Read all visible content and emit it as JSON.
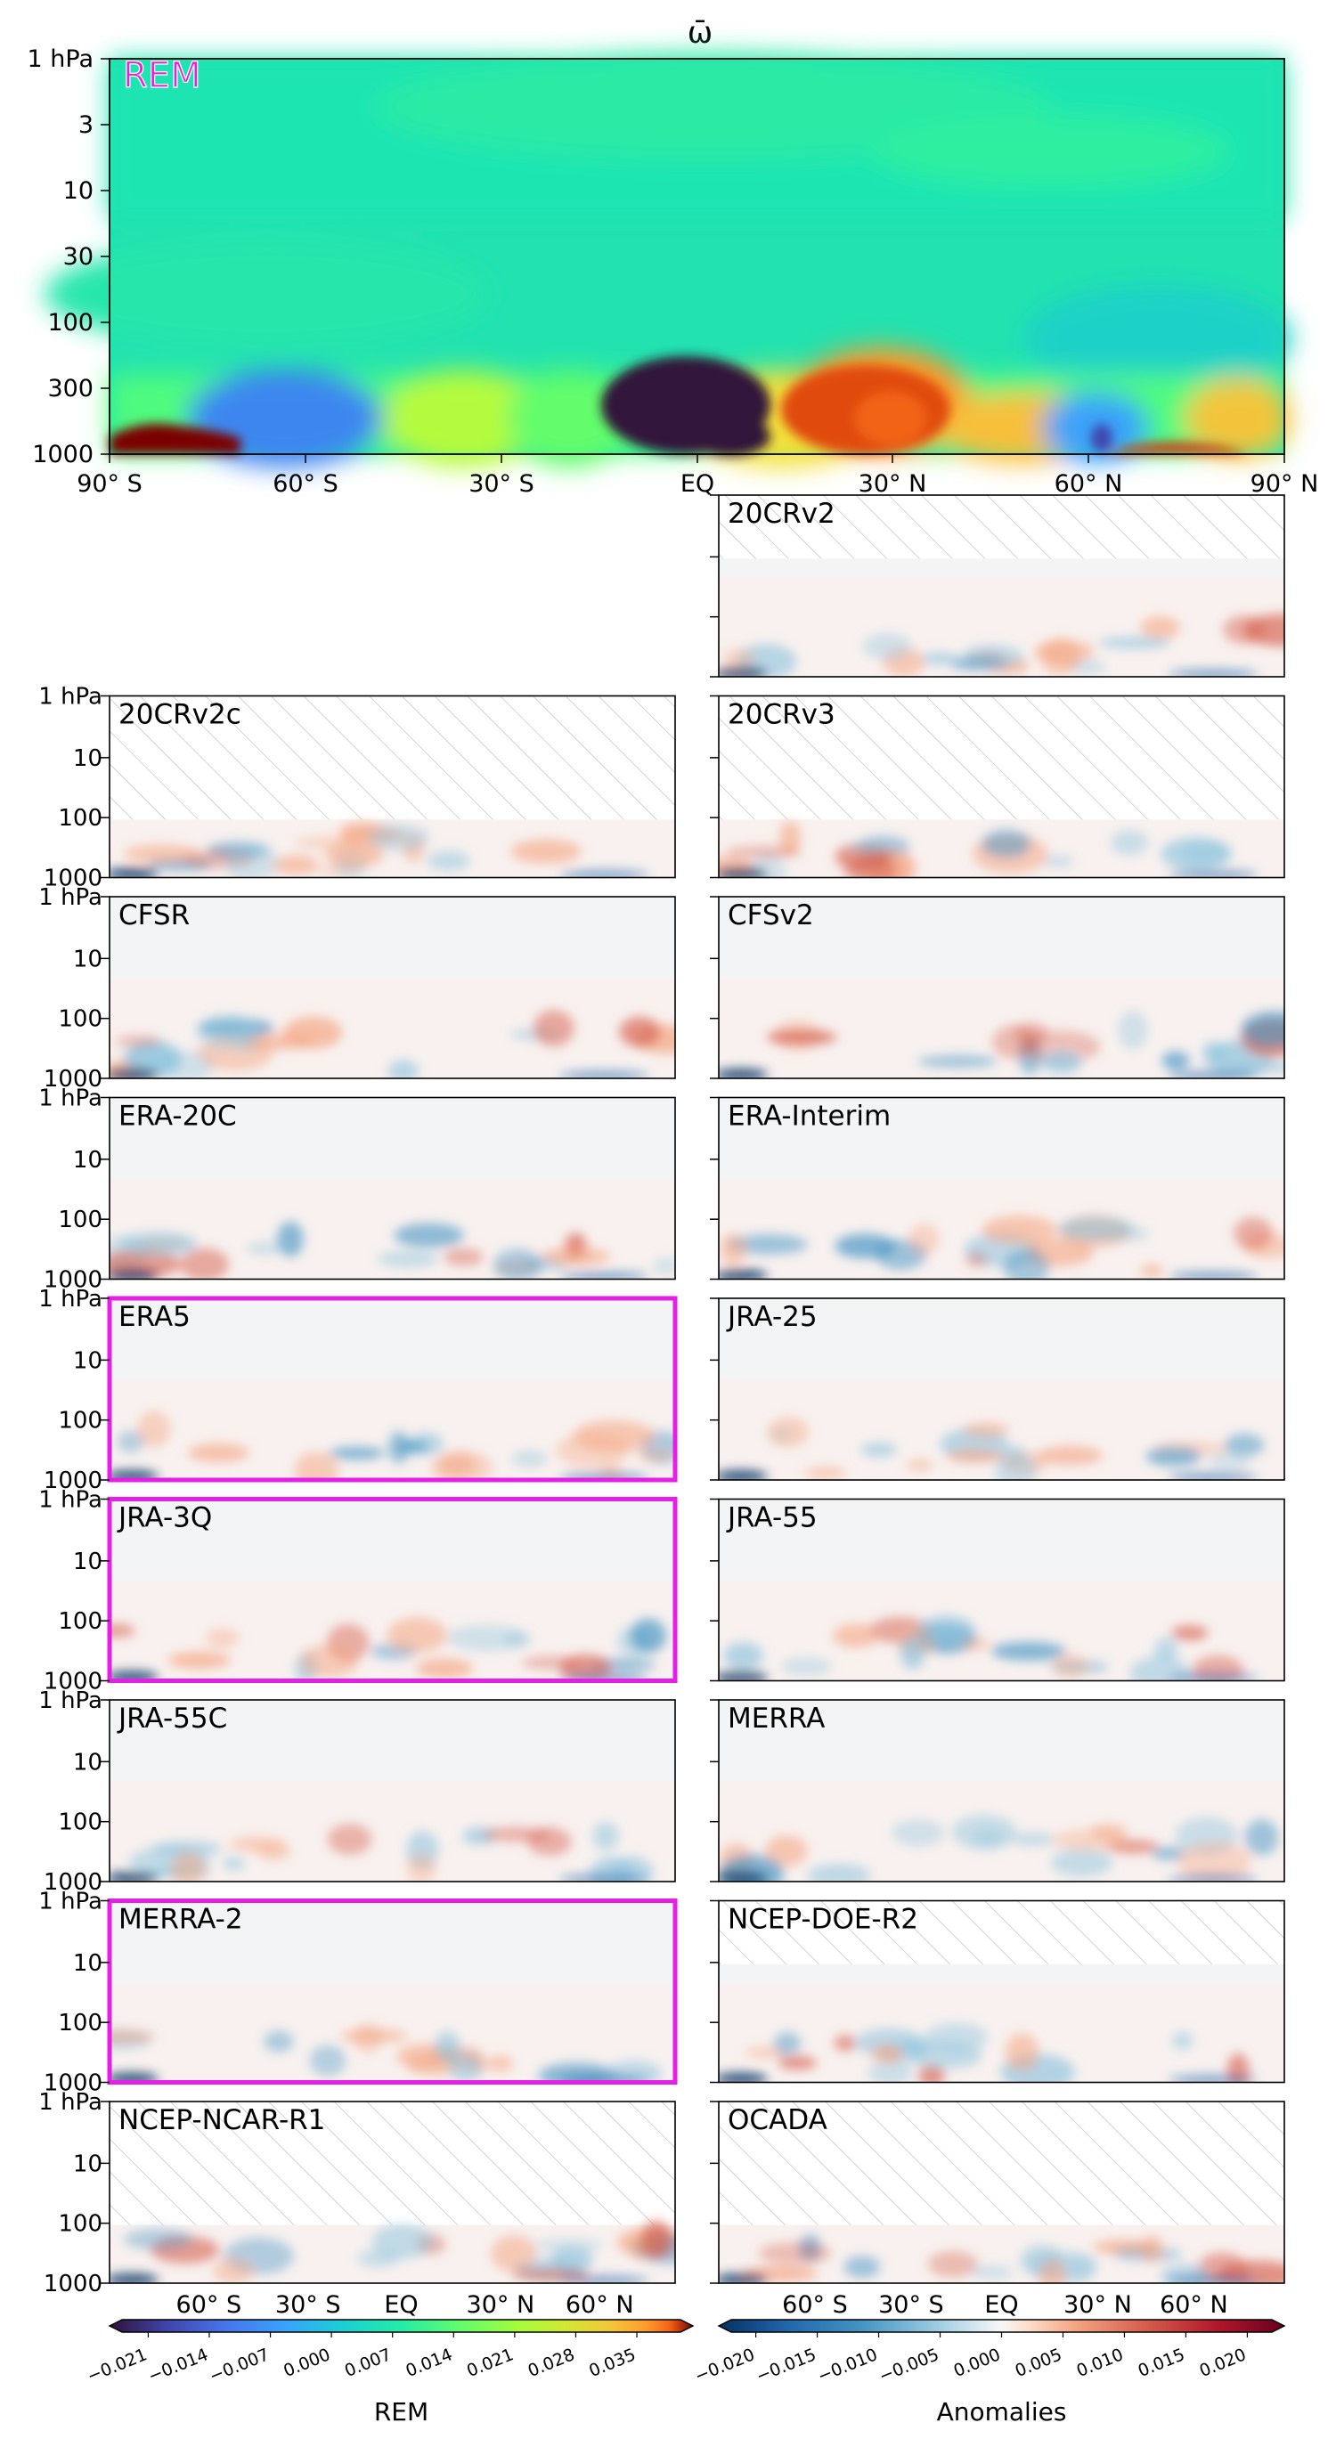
{
  "title": "ω̄",
  "colors": {
    "highlight": "#e51fe5",
    "hatch": "#c8c8c8",
    "background_anomaly": "#f1f3f4"
  },
  "chart_data": {
    "type": "heatmap",
    "x_ticks_top": [
      "90° S",
      "60° S",
      "30° S",
      "EQ",
      "30° N",
      "60° N",
      "90° N"
    ],
    "x_ticks_bottom": [
      "60° S",
      "30° S",
      "EQ",
      "30° N",
      "60° N"
    ],
    "y_ticks_top": [
      "1 hPa",
      "3",
      "10",
      "30",
      "100",
      "300",
      "1000"
    ],
    "y_ticks_panel": [
      "1 hPa",
      "10",
      "100",
      "1000"
    ],
    "rem_panel": {
      "label": "REM",
      "colormap": "turbo",
      "ylim_hPa": [
        1000,
        1
      ],
      "xlim_deg": [
        -90,
        90
      ]
    },
    "anomaly_panels": [
      {
        "name": "20CRv2",
        "col": 1,
        "row": 0,
        "highlight": false,
        "top_hPa": 10
      },
      {
        "name": "20CRv2c",
        "col": 0,
        "row": 1,
        "highlight": false,
        "top_hPa": 100
      },
      {
        "name": "20CRv3",
        "col": 1,
        "row": 1,
        "highlight": false,
        "top_hPa": 100
      },
      {
        "name": "CFSR",
        "col": 0,
        "row": 2,
        "highlight": false,
        "top_hPa": 1
      },
      {
        "name": "CFSv2",
        "col": 1,
        "row": 2,
        "highlight": false,
        "top_hPa": 1
      },
      {
        "name": "ERA-20C",
        "col": 0,
        "row": 3,
        "highlight": false,
        "top_hPa": 1
      },
      {
        "name": "ERA-Interim",
        "col": 1,
        "row": 3,
        "highlight": false,
        "top_hPa": 1
      },
      {
        "name": "ERA5",
        "col": 0,
        "row": 4,
        "highlight": true,
        "top_hPa": 1
      },
      {
        "name": "JRA-25",
        "col": 1,
        "row": 4,
        "highlight": false,
        "top_hPa": 1
      },
      {
        "name": "JRA-3Q",
        "col": 0,
        "row": 5,
        "highlight": true,
        "top_hPa": 1
      },
      {
        "name": "JRA-55",
        "col": 1,
        "row": 5,
        "highlight": false,
        "top_hPa": 1
      },
      {
        "name": "JRA-55C",
        "col": 0,
        "row": 6,
        "highlight": false,
        "top_hPa": 1
      },
      {
        "name": "MERRA",
        "col": 1,
        "row": 6,
        "highlight": false,
        "top_hPa": 1
      },
      {
        "name": "MERRA-2",
        "col": 0,
        "row": 7,
        "highlight": true,
        "top_hPa": 1
      },
      {
        "name": "NCEP-DOE-R2",
        "col": 1,
        "row": 7,
        "highlight": false,
        "top_hPa": 10
      },
      {
        "name": "NCEP-NCAR-R1",
        "col": 0,
        "row": 8,
        "highlight": false,
        "top_hPa": 100
      },
      {
        "name": "OCADA",
        "col": 1,
        "row": 8,
        "highlight": false,
        "top_hPa": 100
      }
    ],
    "colorbar_rem": {
      "label": "REM",
      "ticks": [
        "−0.021",
        "−0.014",
        "−0.007",
        "0.000",
        "0.007",
        "0.014",
        "0.021",
        "0.028",
        "0.035"
      ],
      "range": [
        -0.024,
        0.04
      ]
    },
    "colorbar_anom": {
      "label": "Anomalies",
      "ticks": [
        "−0.020",
        "−0.015",
        "−0.010",
        "−0.005",
        "0.000",
        "0.005",
        "0.010",
        "0.015",
        "0.020"
      ],
      "range": [
        -0.022,
        0.022
      ]
    }
  }
}
